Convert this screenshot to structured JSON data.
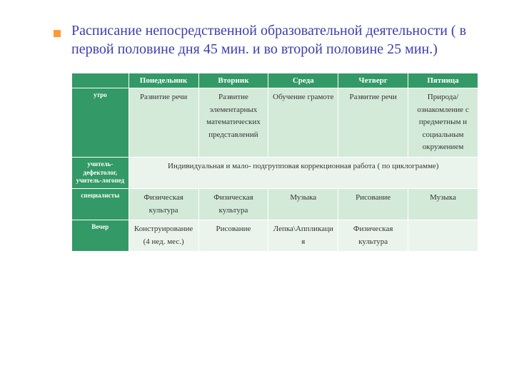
{
  "title": "Расписание непосредственной образовательной деятельности ( в первой половине дня 45 мин. и во второй половине 25 мин.)",
  "colors": {
    "title_color": "#3d3dad",
    "bullet": "#ff9933",
    "header_bg": "#339966",
    "header_fg": "#ffffff",
    "band_a": "#d4ead9",
    "band_b": "#eaf4ec",
    "border": "#ffffff",
    "text": "#333333",
    "page_bg": "#ffffff"
  },
  "typography": {
    "title_fontsize_pt": 15,
    "header_fontsize_pt": 8,
    "rowlabel_fontsize_pt": 7,
    "cell_fontsize_pt": 8,
    "title_font": "Times New Roman",
    "table_font": "Times New Roman"
  },
  "table": {
    "type": "table",
    "columns": [
      "",
      "Понедельник",
      "Вторник",
      "Среда",
      "Четверг",
      "Пятница"
    ],
    "column_widths_pct": [
      14,
      17.2,
      17.2,
      17.2,
      17.2,
      17.2
    ],
    "rows": [
      {
        "label": "утро",
        "band": "a",
        "cells": [
          "Развитие речи",
          "Развитие элементарных математических представлений",
          "Обучение грамоте",
          "Развитие речи",
          "Природа/ ознакомление с предметным и социальным окружением"
        ]
      },
      {
        "label": "учитель-дефектолог, учитель-логопед",
        "band": "b",
        "merged": "Индивидуальная и мало- подгрупповая коррекционная работа ( по циклограмме)"
      },
      {
        "label": "специалисты",
        "band": "a",
        "cells": [
          "Физическая культура",
          "Физическая культура",
          "Музыка",
          "Рисование",
          "Музыка"
        ]
      },
      {
        "label": "Вечер",
        "band": "b",
        "cells": [
          "Конструирование (4 нед. мес.)",
          "Рисование",
          "Лепка\\Аппликация",
          "Физическая культура",
          ""
        ]
      }
    ]
  }
}
